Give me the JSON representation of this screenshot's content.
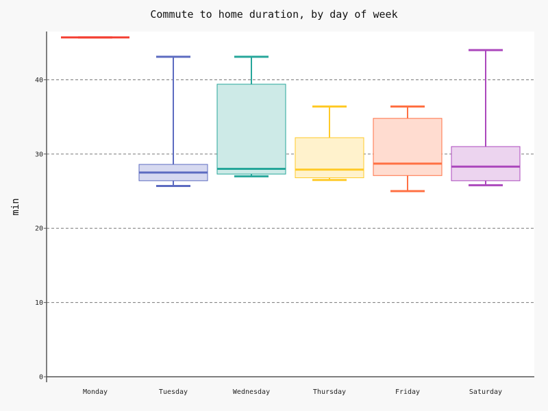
{
  "chart_data": {
    "type": "box",
    "title": "Commute to home duration, by day of week",
    "xlabel": "",
    "ylabel": "min",
    "ylim": [
      0,
      46.5
    ],
    "yticks": [
      0,
      10,
      20,
      30,
      40
    ],
    "grid": "horizontal-dashed",
    "categories": [
      "Monday",
      "Tuesday",
      "Wednesday",
      "Thursday",
      "Friday",
      "Saturday"
    ],
    "series": [
      {
        "category": "Monday",
        "min": 45.7,
        "q1": 45.7,
        "median": 45.7,
        "q3": 45.7,
        "max": 45.7,
        "color": "#f44336",
        "fill": "#fde0dc"
      },
      {
        "category": "Tuesday",
        "min": 25.7,
        "q1": 26.4,
        "median": 27.5,
        "q3": 28.6,
        "max": 43.1,
        "color": "#5c6bc0",
        "fill": "#d6d9f0"
      },
      {
        "category": "Wednesday",
        "min": 27.0,
        "q1": 27.3,
        "median": 28.0,
        "q3": 39.4,
        "max": 43.1,
        "color": "#26a69a",
        "fill": "#cdeae7"
      },
      {
        "category": "Thursday",
        "min": 26.5,
        "q1": 26.8,
        "median": 27.9,
        "q3": 32.2,
        "max": 36.4,
        "color": "#ffca28",
        "fill": "#fff2cc"
      },
      {
        "category": "Friday",
        "min": 25.0,
        "q1": 27.1,
        "median": 28.7,
        "q3": 34.8,
        "max": 36.4,
        "color": "#ff7043",
        "fill": "#ffdcd0"
      },
      {
        "category": "Saturday",
        "min": 25.8,
        "q1": 26.4,
        "median": 28.3,
        "q3": 31.0,
        "max": 44.0,
        "color": "#ab47bc",
        "fill": "#ecd4ef"
      }
    ]
  }
}
